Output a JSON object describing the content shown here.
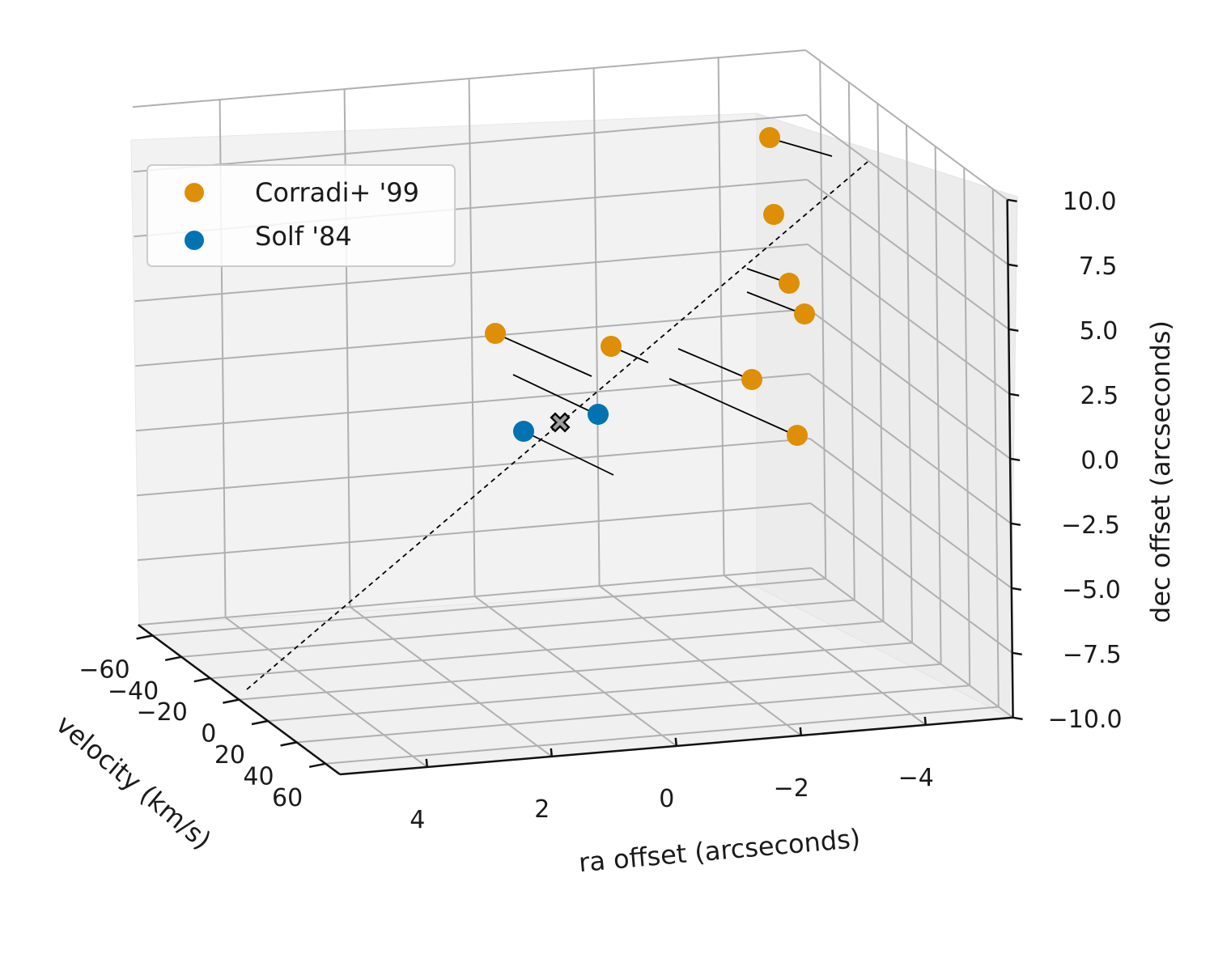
{
  "chart_data": {
    "type": "scatter3d",
    "title": "",
    "xlabel": "ra offset (arcseconds)",
    "ylabel": "velocity (km/s)",
    "zlabel": "dec offset (arcseconds)",
    "xlim": [
      5.4,
      -5.4
    ],
    "ylim": [
      -70,
      70
    ],
    "zlim": [
      -10,
      10
    ],
    "xticks": [
      4,
      2,
      0,
      -2,
      -4
    ],
    "xtick_labels": [
      "4",
      "2",
      "0",
      "−2",
      "−4"
    ],
    "yticks": [
      -60,
      -40,
      -20,
      0,
      20,
      40,
      60
    ],
    "ytick_labels": [
      "−60",
      "−40",
      "−20",
      "0",
      "20",
      "40",
      "60"
    ],
    "zticks": [
      -10,
      -7.5,
      -5,
      -2.5,
      0,
      2.5,
      5,
      7.5,
      10
    ],
    "ztick_labels": [
      "−10.0",
      "−7.5",
      "−5.0",
      "−2.5",
      "0.0",
      "2.5",
      "5.0",
      "7.5",
      "10.0"
    ],
    "grid": true,
    "legend_position": "top-left",
    "series": [
      {
        "name": "Corradi+ '99",
        "color": "#de8f05",
        "points": [
          {
            "ra": -1.0,
            "vel": -55,
            "dec": 13.5
          },
          {
            "ra": -1.0,
            "vel": -55,
            "dec": 11.5
          },
          {
            "ra": -1.0,
            "vel": -40,
            "dec": 9.5
          },
          {
            "ra": -1.5,
            "vel": -45,
            "dec": 9.0
          },
          {
            "ra": 2.5,
            "vel": -60,
            "dec": 3.5
          },
          {
            "ra": 1.2,
            "vel": -55,
            "dec": 3.5
          },
          {
            "ra": -0.5,
            "vel": -40,
            "dec": 3.0
          },
          {
            "ra": -2.0,
            "vel": -10,
            "dec": 2.0
          }
        ]
      },
      {
        "name": "Solf '84",
        "color": "#0173b2",
        "points": [
          {
            "ra": 1.5,
            "vel": -25,
            "dec": 0.5
          },
          {
            "ra": 1.2,
            "vel": 0,
            "dec": 0.0
          }
        ]
      }
    ],
    "marker": {
      "label": "center",
      "ra": 0.5,
      "vel": 0,
      "dec": 0
    },
    "reference_line": {
      "label": "axis (dashed)",
      "style": "dashed"
    }
  },
  "colors": {
    "corradi": "#de8f05",
    "solf": "#0173b2",
    "grid": "#b0b0b0",
    "pane_back": "#f2f2f2",
    "pane_right": "#ececec",
    "pane_floor": "#f0f0f0"
  }
}
